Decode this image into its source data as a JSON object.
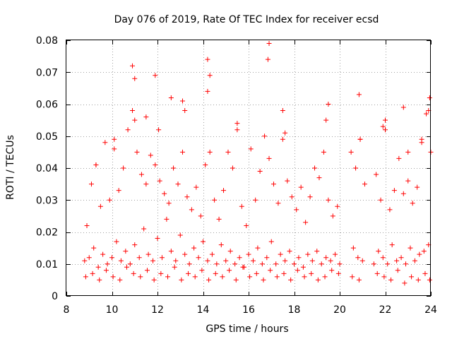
{
  "chart_data": {
    "type": "scatter",
    "title": "Day 076 of 2019, Rate Of TEC Index for receiver ecsd",
    "xlabel": "GPS time / hours",
    "ylabel": "ROTI / TECUs",
    "xlim": [
      8,
      24
    ],
    "ylim": [
      0,
      0.08
    ],
    "xticks": [
      8,
      10,
      12,
      14,
      16,
      18,
      20,
      22,
      24
    ],
    "xtick_labels": [
      "8",
      "10",
      "12",
      "14",
      "16",
      "18",
      "20",
      "22",
      "24"
    ],
    "yticks": [
      0,
      0.01,
      0.02,
      0.03,
      0.04,
      0.05,
      0.06,
      0.07,
      0.08
    ],
    "ytick_labels": [
      "0",
      "0.01",
      "0.02",
      "0.03",
      "0.04",
      "0.05",
      "0.06",
      "0.07",
      "0.08"
    ],
    "grid": true,
    "marker": "+",
    "color": "#ff0000",
    "series": [
      {
        "name": "ROTI",
        "x": [
          8.8,
          8.9,
          9.0,
          9.1,
          9.2,
          9.3,
          9.4,
          9.5,
          9.6,
          9.7,
          9.8,
          9.9,
          10.0,
          10.1,
          10.2,
          10.3,
          10.4,
          10.5,
          10.6,
          10.7,
          10.8,
          10.9,
          11.0,
          11.1,
          11.2,
          11.3,
          11.4,
          11.5,
          11.6,
          11.7,
          11.8,
          11.9,
          12.0,
          12.1,
          12.2,
          12.3,
          12.4,
          12.5,
          12.6,
          12.7,
          12.8,
          12.9,
          13.0,
          13.1,
          13.2,
          13.3,
          13.4,
          13.5,
          13.6,
          13.7,
          13.8,
          13.9,
          14.0,
          14.1,
          14.2,
          14.3,
          14.4,
          14.5,
          14.6,
          14.7,
          14.8,
          14.9,
          15.0,
          15.1,
          15.2,
          15.3,
          15.4,
          15.5,
          15.6,
          15.7,
          15.8,
          15.9,
          16.0,
          16.1,
          16.2,
          16.3,
          16.4,
          16.5,
          16.6,
          16.7,
          16.8,
          16.9,
          17.0,
          17.1,
          17.2,
          17.3,
          17.4,
          17.5,
          17.6,
          17.7,
          17.8,
          17.9,
          18.0,
          18.1,
          18.2,
          18.3,
          18.4,
          18.5,
          18.6,
          18.7,
          18.8,
          18.9,
          19.0,
          19.1,
          19.2,
          19.3,
          19.4,
          19.5,
          19.6,
          19.7,
          19.8,
          19.9,
          20.0,
          20.5,
          20.6,
          20.7,
          20.8,
          20.9,
          21.0,
          21.1,
          21.5,
          21.6,
          21.7,
          21.8,
          21.9,
          22.0,
          22.1,
          22.2,
          22.3,
          22.4,
          22.5,
          22.6,
          22.7,
          22.8,
          22.9,
          23.0,
          23.1,
          23.2,
          23.3,
          23.4,
          23.5,
          23.6,
          23.7,
          23.8,
          23.9,
          24.0,
          8.85,
          9.15,
          9.45,
          9.75,
          10.05,
          10.35,
          10.65,
          10.95,
          11.25,
          11.55,
          11.85,
          12.15,
          12.45,
          12.75,
          13.05,
          13.35,
          13.65,
          13.95,
          14.25,
          14.55,
          14.85,
          15.15,
          15.45,
          15.75,
          16.05,
          16.35,
          16.65,
          16.95,
          17.25,
          17.55,
          17.85,
          18.15,
          18.45,
          18.75,
          19.05,
          19.35,
          19.65,
          19.95,
          20.55,
          20.85,
          21.65,
          21.95,
          22.25,
          22.55,
          22.85,
          23.15,
          23.45,
          23.75,
          23.95,
          10.9,
          11.0,
          11.9,
          12.6,
          13.1,
          14.2,
          14.3,
          16.9,
          16.85,
          20.85,
          19.5,
          22.8,
          23.95,
          23.9,
          13.2,
          12.05,
          11.0,
          15.5,
          17.6,
          19.4,
          22.0,
          20.9,
          23.0,
          11.5,
          14.2,
          17.5,
          21.9,
          23.6,
          9.3,
          10.1
        ],
        "y": [
          0.011,
          0.022,
          0.012,
          0.035,
          0.015,
          0.041,
          0.009,
          0.028,
          0.013,
          0.048,
          0.01,
          0.03,
          0.012,
          0.046,
          0.017,
          0.033,
          0.011,
          0.04,
          0.014,
          0.052,
          0.01,
          0.058,
          0.016,
          0.045,
          0.012,
          0.038,
          0.021,
          0.035,
          0.013,
          0.044,
          0.011,
          0.041,
          0.018,
          0.036,
          0.012,
          0.032,
          0.024,
          0.029,
          0.014,
          0.04,
          0.011,
          0.035,
          0.019,
          0.045,
          0.013,
          0.031,
          0.01,
          0.027,
          0.015,
          0.034,
          0.012,
          0.025,
          0.017,
          0.041,
          0.011,
          0.045,
          0.013,
          0.03,
          0.01,
          0.024,
          0.016,
          0.033,
          0.011,
          0.045,
          0.014,
          0.04,
          0.01,
          0.052,
          0.012,
          0.028,
          0.009,
          0.022,
          0.013,
          0.046,
          0.011,
          0.03,
          0.015,
          0.039,
          0.01,
          0.05,
          0.012,
          0.043,
          0.017,
          0.035,
          0.01,
          0.029,
          0.013,
          0.049,
          0.011,
          0.036,
          0.014,
          0.031,
          0.01,
          0.027,
          0.012,
          0.034,
          0.009,
          0.023,
          0.013,
          0.031,
          0.011,
          0.04,
          0.014,
          0.037,
          0.01,
          0.045,
          0.012,
          0.03,
          0.011,
          0.025,
          0.013,
          0.028,
          0.01,
          0.045,
          0.015,
          0.04,
          0.012,
          0.049,
          0.011,
          0.035,
          0.01,
          0.038,
          0.014,
          0.03,
          0.012,
          0.052,
          0.01,
          0.027,
          0.016,
          0.033,
          0.011,
          0.043,
          0.012,
          0.032,
          0.01,
          0.036,
          0.015,
          0.029,
          0.011,
          0.034,
          0.013,
          0.049,
          0.014,
          0.057,
          0.016,
          0.045,
          0.006,
          0.007,
          0.005,
          0.008,
          0.006,
          0.005,
          0.009,
          0.007,
          0.006,
          0.008,
          0.005,
          0.007,
          0.006,
          0.009,
          0.005,
          0.007,
          0.006,
          0.008,
          0.005,
          0.007,
          0.006,
          0.008,
          0.005,
          0.009,
          0.006,
          0.007,
          0.005,
          0.008,
          0.006,
          0.007,
          0.005,
          0.008,
          0.006,
          0.007,
          0.005,
          0.006,
          0.008,
          0.007,
          0.006,
          0.005,
          0.007,
          0.006,
          0.005,
          0.008,
          0.004,
          0.006,
          0.005,
          0.007,
          0.005,
          0.072,
          0.068,
          0.069,
          0.062,
          0.061,
          0.074,
          0.069,
          0.079,
          0.074,
          0.063,
          0.06,
          0.059,
          0.062,
          0.058,
          0.058,
          0.052,
          0.055,
          0.054,
          0.051,
          0.055,
          0.055,
          0.049,
          0.045,
          0.056,
          0.064,
          0.058,
          0.053,
          0.048,
          0.041,
          0.049
        ]
      }
    ]
  }
}
